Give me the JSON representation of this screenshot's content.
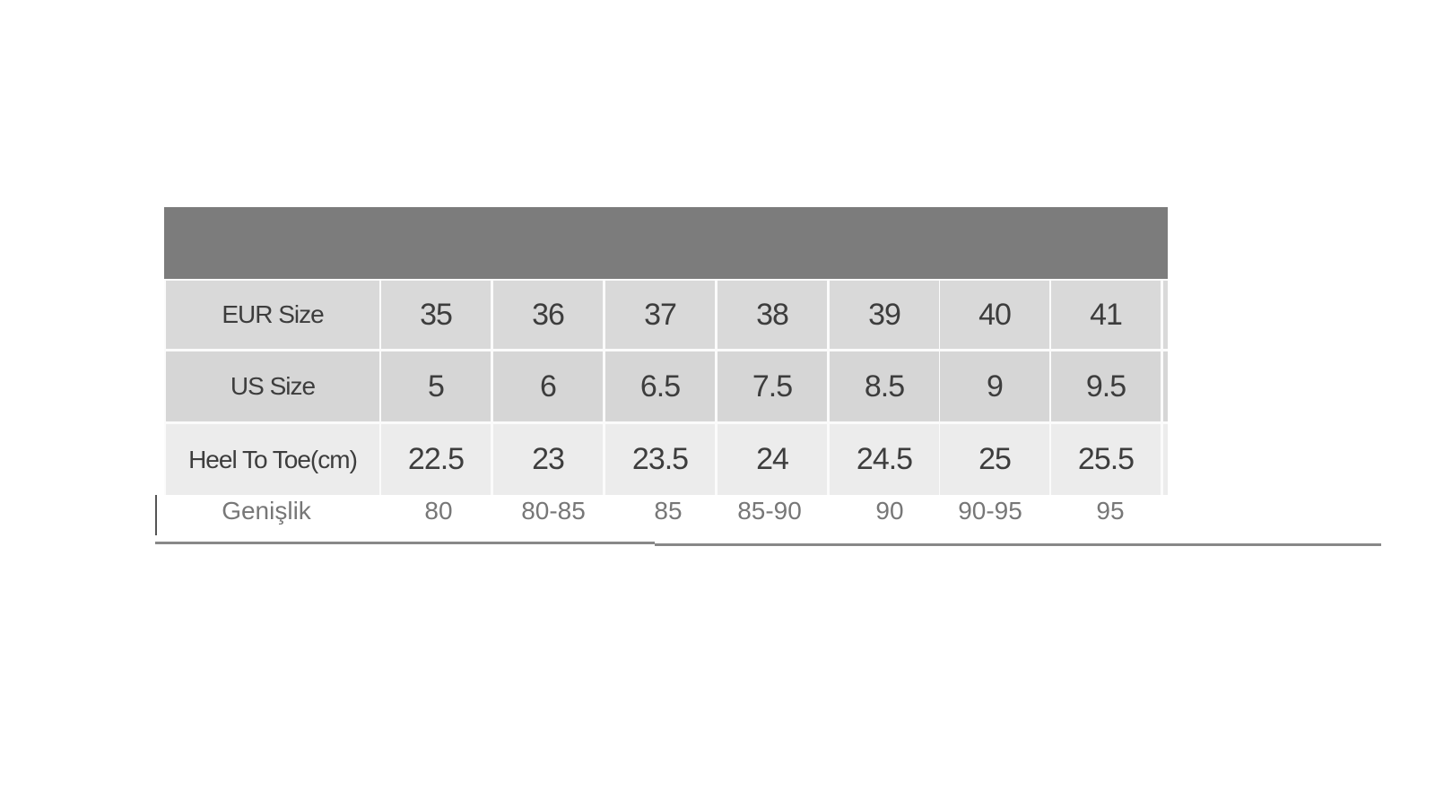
{
  "table": {
    "rows": [
      {
        "label": "EUR Size",
        "values": [
          "35",
          "36",
          "37",
          "38",
          "39",
          "40",
          "41"
        ]
      },
      {
        "label": "US Size",
        "values": [
          "5",
          "6",
          "6.5",
          "7.5",
          "8.5",
          "9",
          "9.5"
        ]
      },
      {
        "label": "Heel To Toe(cm)",
        "values": [
          "22.5",
          "23",
          "23.5",
          "24",
          "24.5",
          "25",
          "25.5"
        ]
      }
    ],
    "width_row": {
      "label": "Genişlik",
      "values": [
        "80",
        "80-85",
        "85",
        "85-90",
        "90",
        "90-95",
        "95"
      ]
    }
  },
  "colors": {
    "header": "#7c7c7c",
    "row_eur": "#d9d9d9",
    "row_us": "#d6d6d6",
    "row_heel": "#ececec",
    "text": "#3d3d3d"
  }
}
